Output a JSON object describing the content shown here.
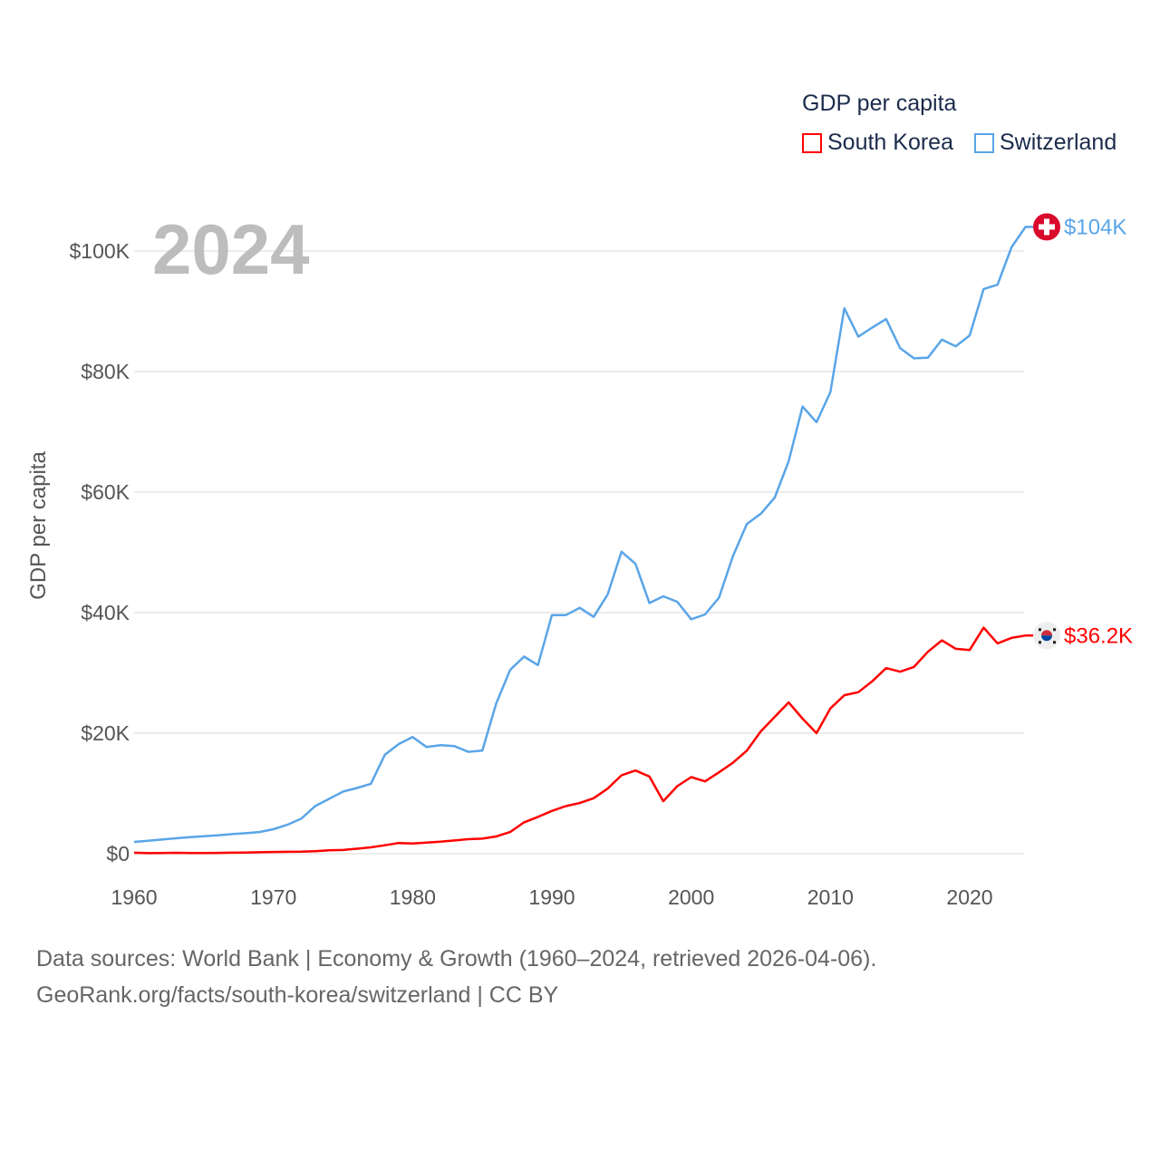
{
  "chart_data": {
    "type": "line",
    "title": "GDP per capita",
    "year_label": "2024",
    "ylabel": "GDP per capita",
    "xlabel": "",
    "xlim": [
      1960,
      2024
    ],
    "ylim": [
      0,
      100000
    ],
    "grid": true,
    "legend_position": "top-right",
    "x_ticks": [
      1960,
      1970,
      1980,
      1990,
      2000,
      2010,
      2020
    ],
    "x_tick_labels": [
      "1960",
      "1970",
      "1980",
      "1990",
      "2000",
      "2010",
      "2020"
    ],
    "y_ticks": [
      0,
      20000,
      40000,
      60000,
      80000,
      100000
    ],
    "y_tick_labels": [
      "$0",
      "$20K",
      "$40K",
      "$60K",
      "$80K",
      "$100K"
    ],
    "x": [
      1960,
      1961,
      1962,
      1963,
      1964,
      1965,
      1966,
      1967,
      1968,
      1969,
      1970,
      1971,
      1972,
      1973,
      1974,
      1975,
      1976,
      1977,
      1978,
      1979,
      1980,
      1981,
      1982,
      1983,
      1984,
      1985,
      1986,
      1987,
      1988,
      1989,
      1990,
      1991,
      1992,
      1993,
      1994,
      1995,
      1996,
      1997,
      1998,
      1999,
      2000,
      2001,
      2002,
      2003,
      2004,
      2005,
      2006,
      2007,
      2008,
      2009,
      2010,
      2011,
      2012,
      2013,
      2014,
      2015,
      2016,
      2017,
      2018,
      2019,
      2020,
      2021,
      2022,
      2023,
      2024
    ],
    "series": [
      {
        "name": "South Korea",
        "color": "#ff0000",
        "end_label": "$36.2K",
        "flag": "south-korea-flag",
        "values": [
          160,
          90,
          100,
          150,
          120,
          110,
          130,
          160,
          200,
          240,
          280,
          310,
          330,
          410,
          560,
          620,
          830,
          1060,
          1400,
          1780,
          1700,
          1850,
          1990,
          2200,
          2400,
          2500,
          2850,
          3600,
          5200,
          6100,
          7100,
          7900,
          8400,
          9200,
          10800,
          13000,
          13800,
          12800,
          8700,
          11200,
          12700,
          12000,
          13500,
          15100,
          17100,
          20300,
          22700,
          25100,
          22400,
          20000,
          24100,
          26300,
          26800,
          28600,
          30800,
          30200,
          31000,
          33500,
          35400,
          34000,
          33800,
          37500,
          34900,
          35800,
          36200
        ]
      },
      {
        "name": "Switzerland",
        "color": "#5aa5e8",
        "end_label": "$104K",
        "flag": "switzerland-flag",
        "values": [
          1950,
          2150,
          2350,
          2550,
          2750,
          2900,
          3050,
          3250,
          3400,
          3600,
          4060,
          4800,
          5800,
          7900,
          9100,
          10300,
          10900,
          11600,
          16400,
          18200,
          19350,
          17700,
          18000,
          17850,
          16900,
          17100,
          24900,
          30500,
          32700,
          31300,
          39600,
          39600,
          40800,
          39300,
          43000,
          50100,
          48100,
          41600,
          42700,
          41800,
          38900,
          39700,
          42500,
          49400,
          54700,
          56400,
          59100,
          65100,
          74200,
          71600,
          76600,
          90500,
          85800,
          87300,
          88700,
          83900,
          82200,
          82300,
          85300,
          84200,
          86000,
          93700,
          94400,
          100600,
          104000
        ]
      }
    ]
  },
  "legend": {
    "title": "GDP per capita",
    "items": [
      "South Korea",
      "Switzerland"
    ]
  },
  "footer": {
    "line1": "Data sources: World Bank | Economy & Growth (1960–2024, retrieved 2026-04-06).",
    "line2": "GeoRank.org/facts/south-korea/switzerland | CC BY"
  }
}
